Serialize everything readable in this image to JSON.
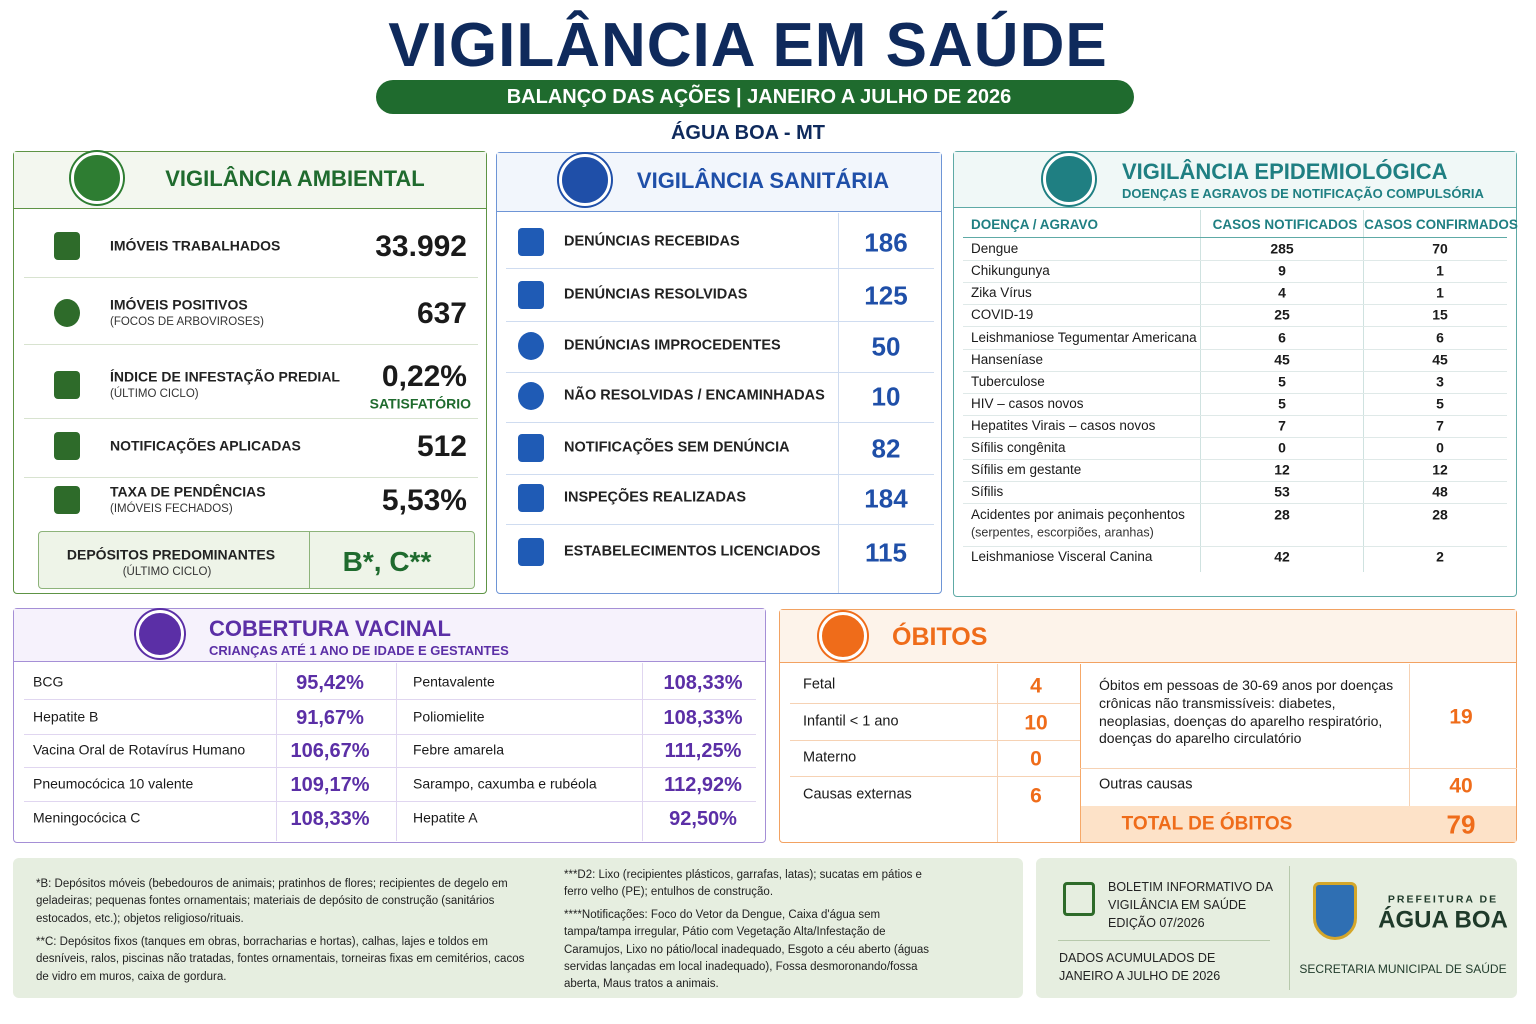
{
  "header": {
    "title": "VIGILÂNCIA EM SAÚDE",
    "subtitle": "BALANÇO DAS AÇÕES | JANEIRO A JULHO DE 2026",
    "location": "ÁGUA BOA - MT"
  },
  "ambiental": {
    "title": "VIGILÂNCIA AMBIENTAL",
    "items": [
      {
        "label": "IMÓVEIS TRABALHADOS",
        "value": "33.992"
      },
      {
        "label": "IMÓVEIS POSITIVOS",
        "note": "(FOCOS DE ARBOVIROSES)",
        "value": "637"
      },
      {
        "label": "ÍNDICE DE INFESTAÇÃO PREDIAL",
        "note": "(ÚLTIMO CICLO)",
        "value": "0,22%",
        "status": "SATISFATÓRIO"
      },
      {
        "label": "NOTIFICAÇÕES APLICADAS",
        "value": "512"
      },
      {
        "label": "TAXA DE PENDÊNCIAS",
        "note": "(IMÓVEIS FECHADOS)",
        "value": "5,53%"
      }
    ],
    "deposits": {
      "label": "DEPÓSITOS PREDOMINANTES",
      "note": "(ÚLTIMO CICLO)",
      "value": "B*, C**"
    }
  },
  "sanitaria": {
    "title": "VIGILÂNCIA SANITÁRIA",
    "items": [
      {
        "label": "DENÚNCIAS RECEBIDAS",
        "value": "186"
      },
      {
        "label": "DENÚNCIAS RESOLVIDAS",
        "value": "125"
      },
      {
        "label": "DENÚNCIAS IMPROCEDENTES",
        "value": "50"
      },
      {
        "label": "NÃO RESOLVIDAS / ENCAMINHADAS",
        "value": "10"
      },
      {
        "label": "NOTIFICAÇÕES SEM DENÚNCIA",
        "value": "82"
      },
      {
        "label": "INSPEÇÕES REALIZADAS",
        "value": "184"
      },
      {
        "label": "ESTABELECIMENTOS LICENCIADOS",
        "value": "115"
      }
    ]
  },
  "epidemiologica": {
    "title": "VIGILÂNCIA EPIDEMIOLÓGICA",
    "subtitle": "DOENÇAS E AGRAVOS DE NOTIFICAÇÃO COMPULSÓRIA",
    "columns": [
      "DOENÇA / AGRAVO",
      "CASOS NOTIFICADOS",
      "CASOS CONFIRMADOS"
    ],
    "rows": [
      {
        "name": "Dengue",
        "notified": "285",
        "confirmed": "70"
      },
      {
        "name": "Chikungunya",
        "notified": "9",
        "confirmed": "1"
      },
      {
        "name": "Zika Vírus",
        "notified": "4",
        "confirmed": "1"
      },
      {
        "name": "COVID-19",
        "notified": "25",
        "confirmed": "15"
      },
      {
        "name": "Leishmaniose Tegumentar Americana",
        "notified": "6",
        "confirmed": "6"
      },
      {
        "name": "Hanseníase",
        "notified": "45",
        "confirmed": "45"
      },
      {
        "name": "Tuberculose",
        "notified": "5",
        "confirmed": "3"
      },
      {
        "name": "HIV – casos novos",
        "notified": "5",
        "confirmed": "5"
      },
      {
        "name": "Hepatites Virais – casos novos",
        "notified": "7",
        "confirmed": "7"
      },
      {
        "name": "Sífilis congênita",
        "notified": "0",
        "confirmed": "0"
      },
      {
        "name": "Sífilis em gestante",
        "notified": "12",
        "confirmed": "12"
      },
      {
        "name": "Sífilis",
        "notified": "53",
        "confirmed": "48"
      },
      {
        "name": "Acidentes por animais peçonhentos",
        "note": "(serpentes, escorpiões, aranhas)",
        "notified": "28",
        "confirmed": "28"
      },
      {
        "name": "Leishmaniose Visceral Canina",
        "notified": "42",
        "confirmed": "2"
      }
    ]
  },
  "vacinal": {
    "title": "COBERTURA VACINAL",
    "subtitle": "CRIANÇAS ATÉ 1 ANO DE IDADE E GESTANTES",
    "rows": [
      {
        "name": "BCG",
        "value": "95,42%"
      },
      {
        "name": "Hepatite B",
        "value": "91,67%"
      },
      {
        "name": "Vacina Oral de Rotavírus Humano",
        "value": "106,67%"
      },
      {
        "name": "Pneumocócica 10 valente",
        "value": "109,17%"
      },
      {
        "name": "Meningocócica C",
        "value": "108,33%"
      },
      {
        "name": "Pentavalente",
        "value": "108,33%"
      },
      {
        "name": "Poliomielite",
        "value": "108,33%"
      },
      {
        "name": "Febre amarela",
        "value": "111,25%"
      },
      {
        "name": "Sarampo, caxumba e rubéola",
        "value": "112,92%"
      },
      {
        "name": "Hepatite A",
        "value": "92,50%"
      }
    ]
  },
  "obitos": {
    "title": "ÓBITOS",
    "left": [
      {
        "label": "Fetal",
        "value": "4"
      },
      {
        "label": "Infantil < 1 ano",
        "value": "10"
      },
      {
        "label": "Materno",
        "value": "0"
      },
      {
        "label": "Causas externas",
        "value": "6"
      }
    ],
    "right": [
      {
        "label": "Óbitos em pessoas de 30-69 anos por doenças crônicas não transmissíveis: diabetes, neoplasias, doenças do aparelho respiratório, doenças do aparelho circulatório",
        "value": "19"
      },
      {
        "label": "Outras causas",
        "value": "40"
      }
    ],
    "total": {
      "label": "TOTAL DE ÓBITOS",
      "value": "79"
    }
  },
  "footer": {
    "notes_left": [
      "*B: Depósitos móveis (bebedouros de animais; pratinhos de flores; recipientes de degelo em geladeiras; pequenas fontes ornamentais; materiais de depósito de construção (sanitários estocados, etc.); objetos religioso/rituais.",
      "**C: Depósitos fixos (tanques em obras, borracharias e hortas), calhas, lajes e toldos em desníveis, ralos, piscinas não tratadas, fontes ornamentais, torneiras fixas em cemitérios, cacos de vidro em muros, caixa de gordura."
    ],
    "notes_right": [
      "***D2: Lixo (recipientes plásticos, garrafas, latas); sucatas em pátios e ferro velho (PE); entulhos de construção.",
      "****Notificações: Foco do Vetor da Dengue, Caixa d'água sem tampa/tampa irregular, Pátio com Vegetação Alta/Infestação de Caramujos, Lixo no pátio/local inadequado, Esgoto a céu aberto (águas servidas lançadas em local inadequado), Fossa desmoronando/fossa aberta, Maus tratos a animais."
    ],
    "bulletin": "BOLETIM INFORMATIVO DA VIGILÂNCIA EM SAÚDE EDIÇÃO 07/2026",
    "accumulated": "DADOS ACUMULADOS DE JANEIRO A JULHO DE 2026",
    "prefeitura": "PREFEITURA DE",
    "city": "ÁGUA BOA",
    "secretaria": "SECRETARIA MUNICIPAL DE SAÚDE"
  }
}
